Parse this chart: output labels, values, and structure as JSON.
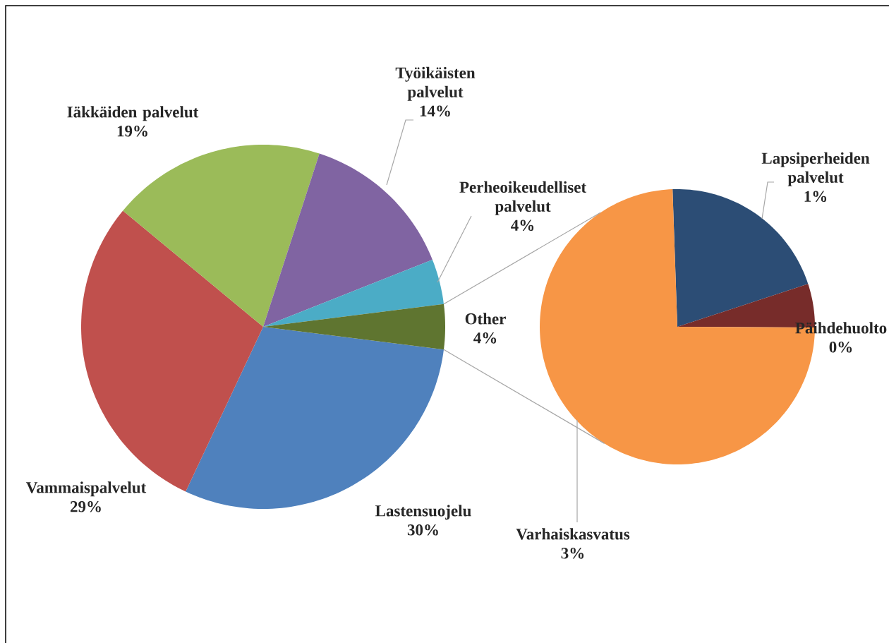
{
  "chart_data": [
    {
      "type": "pie",
      "categories": [
        "Lastensuojelu",
        "Vammaispalvelut",
        "Iäkkäiden palvelut",
        "Työikäisten palvelut",
        "Perheoikeudelliset palvelut",
        "Other"
      ],
      "values": [
        30,
        29,
        19,
        14,
        4,
        4
      ],
      "colors": [
        "#4f81bd",
        "#c0504d",
        "#9bbb59",
        "#8064a2",
        "#4bacc6",
        "#5f7530"
      ],
      "value_labels": [
        "30%",
        "29%",
        "19%",
        "14%",
        "4%",
        "4%"
      ]
    },
    {
      "type": "pie",
      "categories": [
        "Lapsiperheiden palvelut",
        "Päihdehuolto",
        "Varhaiskasvatus"
      ],
      "values": [
        0.8,
        0.2,
        2.9
      ],
      "colors": [
        "#2c4d75",
        "#772c2a",
        "#f79646"
      ],
      "value_labels": [
        "1%",
        "0%",
        "3%"
      ]
    }
  ]
}
